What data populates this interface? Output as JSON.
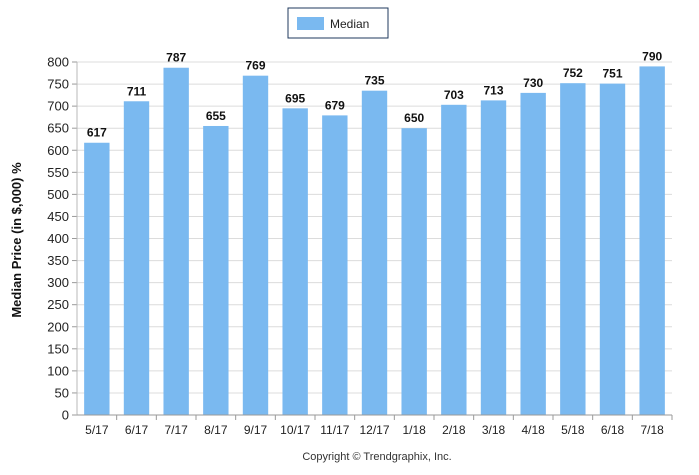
{
  "chart_data": {
    "type": "bar",
    "categories": [
      "5/17",
      "6/17",
      "7/17",
      "8/17",
      "9/17",
      "10/17",
      "11/17",
      "12/17",
      "1/18",
      "2/18",
      "3/18",
      "4/18",
      "5/18",
      "6/18",
      "7/18"
    ],
    "series": [
      {
        "name": "Median",
        "values": [
          617,
          711,
          787,
          655,
          769,
          695,
          679,
          735,
          650,
          703,
          713,
          730,
          752,
          751,
          790
        ]
      }
    ],
    "ylabel": "Median Price (in $,000) %",
    "xlabel": "",
    "ylim": [
      0,
      800
    ],
    "yticks": [
      0,
      50,
      100,
      150,
      200,
      250,
      300,
      350,
      400,
      450,
      500,
      550,
      600,
      650,
      700,
      750,
      800
    ],
    "grid": true,
    "legend_position": "top-center",
    "bar_color": "#7ab9f0",
    "legend_border_color": "#1f3a5c",
    "footer": "Copyright © Trendgraphix, Inc."
  }
}
